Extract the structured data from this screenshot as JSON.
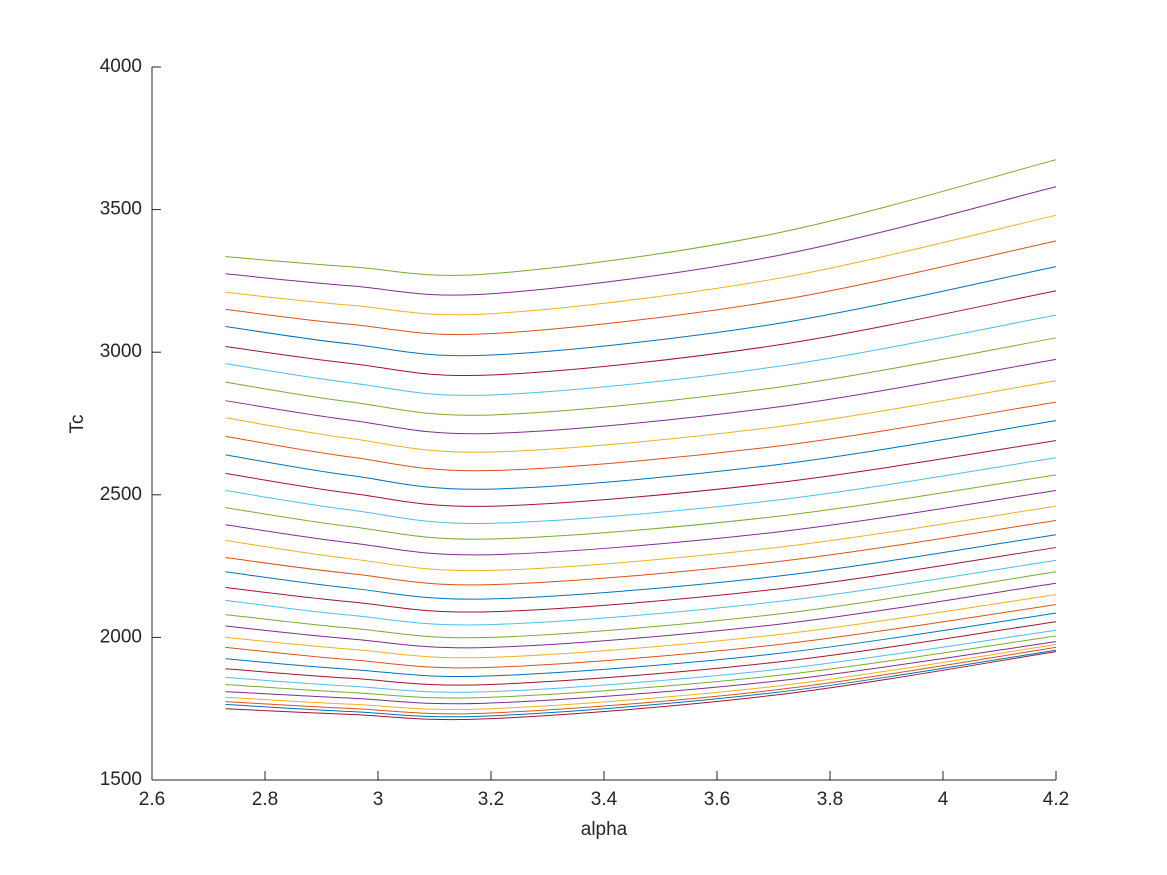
{
  "chart_data": {
    "type": "line",
    "x_label": "alpha",
    "y_label": "Tc",
    "x": [
      2.73,
      2.95,
      3.2,
      3.7,
      4.2
    ],
    "xlim": [
      2.6,
      4.2
    ],
    "xticks": [
      2.6,
      2.8,
      3,
      3.2,
      3.4,
      3.6,
      3.8,
      4,
      4.2
    ],
    "ylim": [
      1500,
      4000
    ],
    "yticks": [
      1500,
      2000,
      2500,
      3000,
      3500,
      4000
    ],
    "grid": false,
    "series": [
      {
        "color": "#77AC30",
        "values": [
          3335,
          3300,
          3275,
          3415,
          3675
        ]
      },
      {
        "color": "#7E2F8E",
        "values": [
          3275,
          3233,
          3205,
          3336,
          3580
        ]
      },
      {
        "color": "#EDB120",
        "values": [
          3210,
          3165,
          3135,
          3256,
          3480
        ]
      },
      {
        "color": "#D95319",
        "values": [
          3150,
          3098,
          3065,
          3179,
          3390
        ]
      },
      {
        "color": "#0072BD",
        "values": [
          3090,
          3029,
          2990,
          3098,
          3300
        ]
      },
      {
        "color": "#A2142F",
        "values": [
          3020,
          2961,
          2920,
          3023,
          3215
        ]
      },
      {
        "color": "#4DBEEE",
        "values": [
          2960,
          2893,
          2850,
          2948,
          3130
        ]
      },
      {
        "color": "#77AC30",
        "values": [
          2895,
          2826,
          2780,
          2875,
          3050
        ]
      },
      {
        "color": "#7E2F8E",
        "values": [
          2830,
          2762,
          2715,
          2806,
          2975
        ]
      },
      {
        "color": "#EDB120",
        "values": [
          2770,
          2698,
          2650,
          2737,
          2900
        ]
      },
      {
        "color": "#D95319",
        "values": [
          2705,
          2633,
          2585,
          2669,
          2825
        ]
      },
      {
        "color": "#0072BD",
        "values": [
          2640,
          2568,
          2520,
          2604,
          2760
        ]
      },
      {
        "color": "#A2142F",
        "values": [
          2575,
          2506,
          2460,
          2541,
          2690
        ]
      },
      {
        "color": "#4DBEEE",
        "values": [
          2515,
          2447,
          2400,
          2480,
          2630
        ]
      },
      {
        "color": "#77AC30",
        "values": [
          2455,
          2389,
          2345,
          2423,
          2570
        ]
      },
      {
        "color": "#7E2F8E",
        "values": [
          2395,
          2332,
          2290,
          2368,
          2515
        ]
      },
      {
        "color": "#EDB120",
        "values": [
          2340,
          2276,
          2235,
          2314,
          2460
        ]
      },
      {
        "color": "#D95319",
        "values": [
          2280,
          2224,
          2185,
          2264,
          2410
        ]
      },
      {
        "color": "#0072BD",
        "values": [
          2230,
          2173,
          2135,
          2213,
          2360
        ]
      },
      {
        "color": "#A2142F",
        "values": [
          2175,
          2125,
          2090,
          2168,
          2315
        ]
      },
      {
        "color": "#4DBEEE",
        "values": [
          2130,
          2078,
          2045,
          2124,
          2270
        ]
      },
      {
        "color": "#77AC30",
        "values": [
          2080,
          2033,
          2000,
          2080,
          2230
        ]
      },
      {
        "color": "#7E2F8E",
        "values": [
          2040,
          1995,
          1965,
          2044,
          2190
        ]
      },
      {
        "color": "#EDB120",
        "values": [
          2000,
          1959,
          1930,
          2008,
          2150
        ]
      },
      {
        "color": "#D95319",
        "values": [
          1965,
          1922,
          1895,
          1973,
          2115
        ]
      },
      {
        "color": "#0072BD",
        "values": [
          1925,
          1888,
          1865,
          1942,
          2085
        ]
      },
      {
        "color": "#A2142F",
        "values": [
          1890,
          1857,
          1835,
          1912,
          2055
        ]
      },
      {
        "color": "#4DBEEE",
        "values": [
          1860,
          1829,
          1810,
          1886,
          2025
        ]
      },
      {
        "color": "#77AC30",
        "values": [
          1835,
          1807,
          1790,
          1865,
          2005
        ]
      },
      {
        "color": "#7E2F8E",
        "values": [
          1810,
          1787,
          1770,
          1846,
          1985
        ]
      },
      {
        "color": "#EDB120",
        "values": [
          1790,
          1766,
          1750,
          1828,
          1975
        ]
      },
      {
        "color": "#D95319",
        "values": [
          1775,
          1751,
          1735,
          1815,
          1965
        ]
      },
      {
        "color": "#0072BD",
        "values": [
          1765,
          1740,
          1725,
          1806,
          1955
        ]
      },
      {
        "color": "#A2142F",
        "values": [
          1750,
          1730,
          1715,
          1797,
          1950
        ]
      }
    ]
  }
}
